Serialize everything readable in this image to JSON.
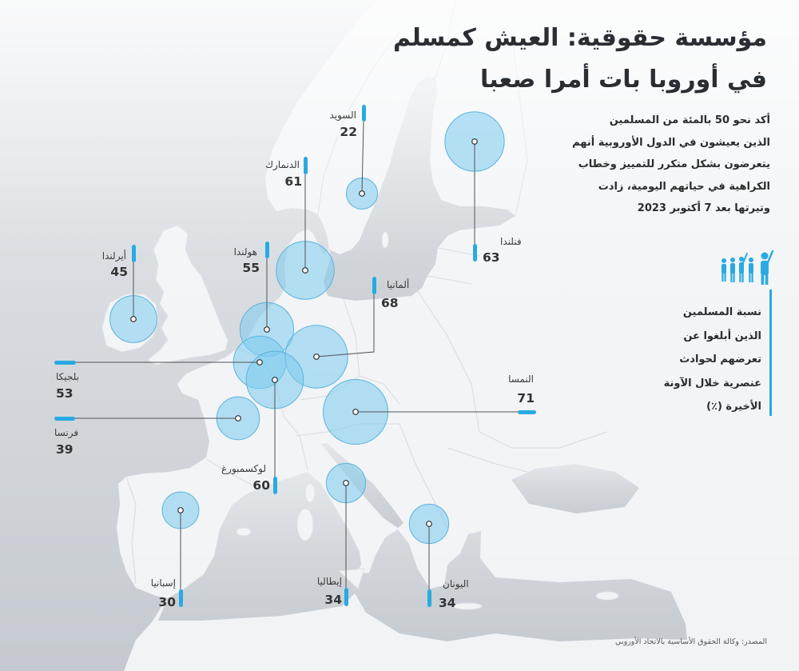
{
  "title": {
    "line1": "مؤسسة حقوقية: العيش كمسلم",
    "line2": "في أوروبا بات أمرا صعبا"
  },
  "intro": {
    "lines": [
      "أكد نحو 50 بالمئة من المسلمين",
      "الذين يعيشون في الدول الأوروبية أنهم",
      "يتعرضون بشكل متكرر للتمييز وخطاب",
      "الكراهية في حياتهم اليومية، زادت",
      "وتيرتها بعد 7 أكتوبر 2023"
    ]
  },
  "legend": {
    "icon": "people-group-icon",
    "lines": [
      "نسبة المسلمين",
      "الذين أبلغوا عن",
      "تعرضهم لحوادث",
      "عنصرية خلال الآونة",
      "الأخيرة (٪)"
    ]
  },
  "source": "المصدر: وكالة الحقوق الأساسية بالاتحاد الأوروبي",
  "colors": {
    "bubble_fill": "#7ccbef",
    "bubble_stroke": "#5ab4de",
    "tick": "#29aae1",
    "leader": "#4f5459",
    "sea": "#c9ced4",
    "land": "#f1f3f5"
  },
  "countries": [
    {
      "name": "السويد",
      "value": 22
    },
    {
      "name": "الدنمارك",
      "value": 61
    },
    {
      "name": "فنلندا",
      "value": 63
    },
    {
      "name": "أيرلندا",
      "value": 45
    },
    {
      "name": "هولندا",
      "value": 55
    },
    {
      "name": "ألمانيا",
      "value": 68
    },
    {
      "name": "بلجيكا",
      "value": 53
    },
    {
      "name": "فرنسا",
      "value": 39
    },
    {
      "name": "لوكسمبورغ",
      "value": 60
    },
    {
      "name": "النمسا",
      "value": 71
    },
    {
      "name": "إيطاليا",
      "value": 34
    },
    {
      "name": "اليونان",
      "value": 34
    },
    {
      "name": "إسبانيا",
      "value": 30
    }
  ]
}
